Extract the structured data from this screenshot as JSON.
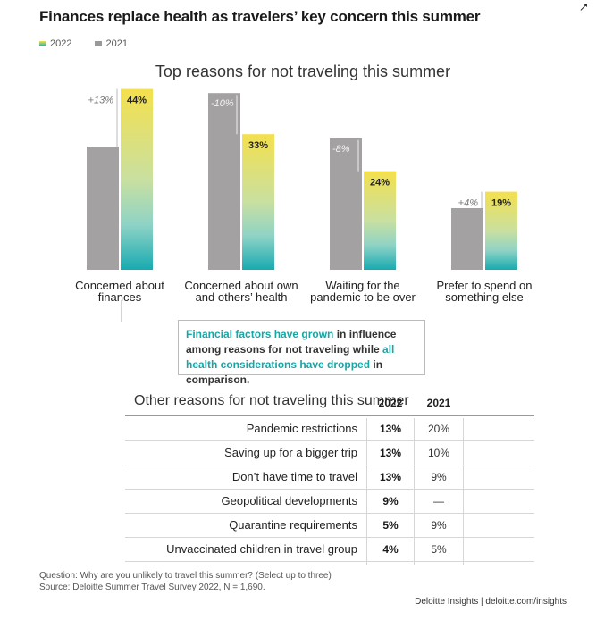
{
  "header": {
    "title": "Finances replace health as travelers’ key concern this summer"
  },
  "legend": {
    "items": [
      {
        "label": "2022",
        "color": "#9ccc3c"
      },
      {
        "label": "2021",
        "color": "#999999"
      }
    ]
  },
  "chart_data": {
    "type": "bar",
    "title": "Top reasons for not traveling this summer",
    "categories": [
      [
        "Concerned about",
        "finances"
      ],
      [
        "Concerned about own",
        "and others’ health"
      ],
      [
        "Waiting for the",
        "pandemic to be over"
      ],
      [
        "Prefer to spend on",
        "something else"
      ]
    ],
    "series": [
      {
        "name": "2021",
        "values": [
          30,
          43,
          32,
          15
        ],
        "color": "#a3a1a1"
      },
      {
        "name": "2022",
        "values": [
          44,
          33,
          24,
          19
        ],
        "gradient": [
          "#f4e04d",
          "#8fd3c6",
          "#18aab0"
        ]
      }
    ],
    "data_labels": [
      "44%",
      "33%",
      "24%",
      "19%"
    ],
    "change_labels": [
      "+13%",
      "-10%",
      "-8%",
      "+4%"
    ],
    "ylim": [
      0,
      50
    ],
    "grid": false
  },
  "callout": {
    "part1": "Financial factors have grown",
    "part2": " in influence among reasons for not traveling while ",
    "part3": "all health considerations have dropped",
    "part4": " in comparison."
  },
  "table": {
    "title": "Other reasons for not traveling this summer",
    "col_2022": "2022",
    "col_2021": "2021",
    "rows": [
      {
        "label": "Pandemic restrictions",
        "v2022": "13%",
        "v2021": "20%"
      },
      {
        "label": "Saving up for a bigger trip",
        "v2022": "13%",
        "v2021": "10%"
      },
      {
        "label": "Don’t have time to travel",
        "v2022": "13%",
        "v2021": "9%"
      },
      {
        "label": "Geopolitical developments",
        "v2022": "9%",
        "v2021": "—"
      },
      {
        "label": "Quarantine requirements",
        "v2022": "5%",
        "v2021": "9%"
      },
      {
        "label": "Unvaccinated children in travel group",
        "v2022": "4%",
        "v2021": "5%"
      }
    ]
  },
  "footnote": {
    "question": "Question: Why are you unlikely to travel this summer? (Select up to three)",
    "source": "Source: Deloitte Summer Travel Survey 2022, N = 1,690."
  },
  "credit": "Deloitte Insights | deloitte.com/insights"
}
